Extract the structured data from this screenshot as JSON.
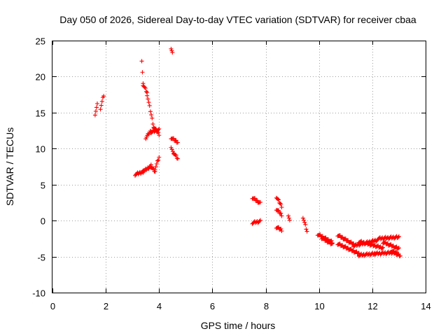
{
  "chart_data": {
    "type": "scatter",
    "title": "Day 050 of 2026, Sidereal Day-to-day VTEC variation (SDTVAR) for receiver cbaa",
    "xlabel": "GPS time / hours",
    "ylabel": "SDTVAR / TECUs",
    "xlim": [
      0,
      14
    ],
    "ylim": [
      -10,
      25
    ],
    "xticks": [
      0,
      2,
      4,
      6,
      8,
      10,
      12,
      14
    ],
    "yticks": [
      -10,
      -5,
      0,
      5,
      10,
      15,
      20,
      25
    ],
    "xtick_labels": [
      "0",
      "2",
      "4",
      "6",
      "8",
      "10",
      "12",
      "14"
    ],
    "ytick_labels": [
      "-10",
      "-5",
      "0",
      "5",
      "10",
      "15",
      "20",
      "25"
    ],
    "grid": true,
    "marker": "plus",
    "color": "#ff0000",
    "segments": [
      [
        1.6,
        1.68,
        14.8,
        16.1
      ],
      [
        1.8,
        1.92,
        15.6,
        17.4
      ],
      [
        3.1,
        3.4,
        6.4,
        6.8
      ],
      [
        3.4,
        3.7,
        6.8,
        7.6
      ],
      [
        3.7,
        3.85,
        7.5,
        6.8
      ],
      [
        3.85,
        4.0,
        7.2,
        8.8
      ],
      [
        3.35,
        3.4,
        22.3,
        19.0
      ],
      [
        3.4,
        3.55,
        18.9,
        17.8
      ],
      [
        3.55,
        3.8,
        17.5,
        13.0
      ],
      [
        3.8,
        4.0,
        13.0,
        12.0
      ],
      [
        3.5,
        3.7,
        11.5,
        12.5
      ],
      [
        3.7,
        4.0,
        12.3,
        12.6
      ],
      [
        4.45,
        4.5,
        24.0,
        23.3
      ],
      [
        4.45,
        4.7,
        11.5,
        10.9
      ],
      [
        4.45,
        4.55,
        10.3,
        9.2
      ],
      [
        4.55,
        4.7,
        9.4,
        8.6
      ],
      [
        7.5,
        7.8,
        3.2,
        2.4
      ],
      [
        7.5,
        7.8,
        -0.3,
        -0.1
      ],
      [
        8.4,
        8.6,
        3.3,
        2.0
      ],
      [
        8.4,
        8.6,
        1.6,
        0.8
      ],
      [
        8.4,
        8.6,
        -0.9,
        -1.3
      ],
      [
        8.85,
        8.9,
        0.8,
        0.0
      ],
      [
        9.4,
        9.55,
        0.5,
        -1.5
      ],
      [
        9.95,
        10.5,
        -1.9,
        -3.0
      ],
      [
        10.1,
        10.5,
        -2.4,
        -3.3
      ],
      [
        10.7,
        11.3,
        -2.0,
        -3.3
      ],
      [
        10.7,
        11.5,
        -3.2,
        -4.6
      ],
      [
        11.3,
        12.2,
        -3.5,
        -2.7
      ],
      [
        11.5,
        12.4,
        -2.9,
        -3.8
      ],
      [
        11.5,
        12.1,
        -4.8,
        -4.6
      ],
      [
        12.1,
        12.9,
        -4.6,
        -4.4
      ],
      [
        12.2,
        13.0,
        -2.5,
        -2.3
      ],
      [
        12.4,
        13.0,
        -3.0,
        -3.9
      ],
      [
        12.7,
        13.05,
        -4.2,
        -4.9
      ]
    ]
  }
}
